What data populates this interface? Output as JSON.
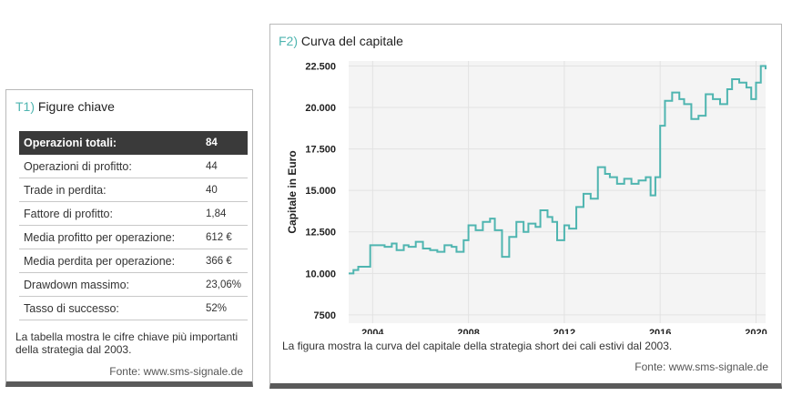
{
  "table": {
    "tag": "T1)",
    "title": "Figure chiave",
    "rows": [
      {
        "label": "Operazioni totali:",
        "value": "84"
      },
      {
        "label": "Operazioni di profitto:",
        "value": "44"
      },
      {
        "label": "Trade in perdita:",
        "value": "40"
      },
      {
        "label": "Fattore di profitto:",
        "value": "1,84"
      },
      {
        "label": "Media profitto per operazione:",
        "value": "612 €"
      },
      {
        "label": "Media perdita per operazione:",
        "value": "366 €"
      },
      {
        "label": "Drawdown massimo:",
        "value": "23,06%"
      },
      {
        "label": "Tasso di successo:",
        "value": "52%"
      }
    ],
    "caption": "La tabella mostra le cifre chiave più importanti della strategia dal 2003.",
    "source": "Fonte: www.sms-signale.de"
  },
  "chart_card": {
    "tag": "F2)",
    "title": "Curva del capitale",
    "caption": "La figura mostra la curva del capitale della strategia short dei cali estivi dal 2003.",
    "source": "Fonte: www.sms-signale.de"
  },
  "chart_data": {
    "type": "line",
    "title": "Curva del capitale",
    "xlabel": "",
    "ylabel": "Capitale in Euro",
    "xlim": [
      2003,
      2020.4
    ],
    "ylim": [
      7000,
      22800
    ],
    "xticks": [
      2004,
      2008,
      2012,
      2016,
      2020
    ],
    "yticks": [
      7500,
      10000,
      12500,
      15000,
      17500,
      20000,
      22500
    ],
    "xtick_labels": [
      "2004",
      "2008",
      "2012",
      "2016",
      "2020"
    ],
    "ytick_labels": [
      "7500",
      "10.000",
      "12.500",
      "15.000",
      "17.500",
      "20.000",
      "22.500"
    ],
    "grid": true,
    "legend": "none",
    "line_color": "#4fb5b0",
    "step": true,
    "series": [
      {
        "x": [
          2003.0,
          2003.2,
          2003.4,
          2003.9,
          2004.5,
          2004.8,
          2005.0,
          2005.3,
          2005.5,
          2005.8,
          2006.1,
          2006.4,
          2006.7,
          2007.0,
          2007.3,
          2007.5,
          2007.8,
          2008.0,
          2008.3,
          2008.6,
          2008.9,
          2009.1,
          2009.4,
          2009.7,
          2010.0,
          2010.3,
          2010.5,
          2010.8,
          2011.0,
          2011.3,
          2011.5,
          2011.7,
          2012.0,
          2012.2,
          2012.5,
          2012.8,
          2013.1,
          2013.4,
          2013.7,
          2013.9,
          2014.2,
          2014.5,
          2014.8,
          2015.1,
          2015.4,
          2015.6,
          2015.8,
          2016.0,
          2016.2,
          2016.5,
          2016.8,
          2017.0,
          2017.3,
          2017.6,
          2017.9,
          2018.2,
          2018.5,
          2018.8,
          2019.0,
          2019.3,
          2019.6,
          2019.8,
          2020.0,
          2020.2,
          2020.4
        ],
        "y": [
          10000,
          10200,
          10400,
          11700,
          11600,
          11800,
          11400,
          11700,
          11600,
          11900,
          11500,
          11400,
          11300,
          11700,
          11600,
          11300,
          12000,
          12900,
          12600,
          13100,
          13300,
          12600,
          11000,
          12200,
          13100,
          12500,
          13000,
          12800,
          13800,
          13400,
          13100,
          12000,
          12900,
          12700,
          14000,
          14800,
          14500,
          16400,
          16000,
          15800,
          15400,
          15700,
          15400,
          15600,
          15800,
          14700,
          15800,
          18900,
          20400,
          20900,
          20500,
          20200,
          19300,
          19500,
          20800,
          20500,
          20200,
          21100,
          21700,
          21500,
          21200,
          20500,
          21500,
          22500,
          22300
        ]
      }
    ]
  }
}
